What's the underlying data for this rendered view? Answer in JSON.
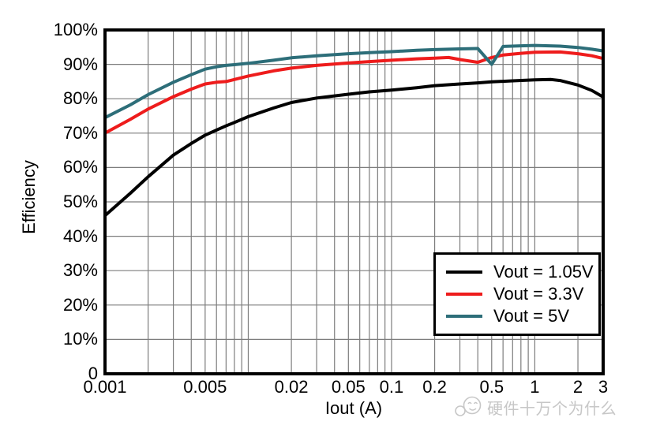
{
  "watermark": {
    "text": "硬件十万个为什么"
  },
  "chart_data": {
    "type": "line",
    "title": "",
    "xlabel": "Iout (A)",
    "ylabel": "Efficiency",
    "x_scale": "log",
    "xlim": [
      0.001,
      3
    ],
    "ylim": [
      0,
      100
    ],
    "grid": true,
    "legend_position": "lower-right",
    "x_ticks": [
      {
        "v": 0.001,
        "label": "0.001"
      },
      {
        "v": 0.005,
        "label": "0.005"
      },
      {
        "v": 0.02,
        "label": "0.02"
      },
      {
        "v": 0.05,
        "label": "0.05"
      },
      {
        "v": 0.1,
        "label": "0.1"
      },
      {
        "v": 0.2,
        "label": "0.2"
      },
      {
        "v": 0.5,
        "label": "0.5"
      },
      {
        "v": 1,
        "label": "1"
      },
      {
        "v": 2,
        "label": "2"
      },
      {
        "v": 3,
        "label": "3"
      }
    ],
    "y_ticks": [
      {
        "v": 100,
        "label": "100%"
      },
      {
        "v": 90,
        "label": "90%"
      },
      {
        "v": 80,
        "label": "80%"
      },
      {
        "v": 70,
        "label": "70%"
      },
      {
        "v": 60,
        "label": "60%"
      },
      {
        "v": 50,
        "label": "50%"
      },
      {
        "v": 40,
        "label": "40%"
      },
      {
        "v": 30,
        "label": "30%"
      },
      {
        "v": 20,
        "label": "20%"
      },
      {
        "v": 10,
        "label": "10%"
      },
      {
        "v": 0,
        "label": "0"
      }
    ],
    "x_gridlines": [
      0.002,
      0.003,
      0.004,
      0.005,
      0.006,
      0.007,
      0.008,
      0.009,
      0.01,
      0.02,
      0.03,
      0.04,
      0.05,
      0.06,
      0.07,
      0.08,
      0.09,
      0.1,
      0.2,
      0.3,
      0.4,
      0.5,
      0.6,
      0.7,
      0.8,
      0.9,
      1,
      2
    ],
    "y_gridlines": [
      10,
      20,
      30,
      40,
      50,
      60,
      70,
      80,
      90
    ],
    "series": [
      {
        "name": "Vout = 1.05V",
        "color": "#000000",
        "points": [
          [
            0.001,
            46
          ],
          [
            0.0015,
            52.5
          ],
          [
            0.002,
            57.3
          ],
          [
            0.003,
            63.6
          ],
          [
            0.004,
            67
          ],
          [
            0.005,
            69.4
          ],
          [
            0.006,
            70.9
          ],
          [
            0.007,
            72.1
          ],
          [
            0.008,
            73.1
          ],
          [
            0.01,
            74.8
          ],
          [
            0.015,
            77.3
          ],
          [
            0.02,
            78.9
          ],
          [
            0.03,
            80.2
          ],
          [
            0.05,
            81.3
          ],
          [
            0.07,
            82
          ],
          [
            0.1,
            82.5
          ],
          [
            0.15,
            83.2
          ],
          [
            0.2,
            83.8
          ],
          [
            0.3,
            84.3
          ],
          [
            0.4,
            84.6
          ],
          [
            0.5,
            84.9
          ],
          [
            0.7,
            85.2
          ],
          [
            1,
            85.5
          ],
          [
            1.3,
            85.6
          ],
          [
            1.5,
            85.3
          ],
          [
            2,
            84
          ],
          [
            2.5,
            82.4
          ],
          [
            3,
            80.5
          ]
        ]
      },
      {
        "name": "Vout = 3.3V",
        "color": "#ee1c1c",
        "points": [
          [
            0.001,
            70
          ],
          [
            0.0015,
            74
          ],
          [
            0.002,
            77
          ],
          [
            0.003,
            80.6
          ],
          [
            0.004,
            82.8
          ],
          [
            0.005,
            84.3
          ],
          [
            0.006,
            84.8
          ],
          [
            0.007,
            85
          ],
          [
            0.008,
            85.6
          ],
          [
            0.01,
            86.6
          ],
          [
            0.015,
            88.1
          ],
          [
            0.02,
            88.9
          ],
          [
            0.03,
            89.7
          ],
          [
            0.05,
            90.4
          ],
          [
            0.07,
            90.8
          ],
          [
            0.1,
            91.2
          ],
          [
            0.15,
            91.6
          ],
          [
            0.2,
            91.8
          ],
          [
            0.25,
            92
          ],
          [
            0.3,
            91.4
          ],
          [
            0.4,
            90.6
          ],
          [
            0.5,
            92
          ],
          [
            0.6,
            92.7
          ],
          [
            0.8,
            93.2
          ],
          [
            1,
            93.5
          ],
          [
            1.5,
            93.6
          ],
          [
            2,
            93.1
          ],
          [
            2.5,
            92.5
          ],
          [
            3,
            91.7
          ]
        ]
      },
      {
        "name": "Vout = 5V",
        "color": "#2d6e79",
        "points": [
          [
            0.001,
            74.5
          ],
          [
            0.0015,
            78.2
          ],
          [
            0.002,
            81.2
          ],
          [
            0.003,
            84.8
          ],
          [
            0.004,
            87
          ],
          [
            0.005,
            88.6
          ],
          [
            0.006,
            89.3
          ],
          [
            0.007,
            89.7
          ],
          [
            0.008,
            89.9
          ],
          [
            0.01,
            90.3
          ],
          [
            0.015,
            91.2
          ],
          [
            0.02,
            91.9
          ],
          [
            0.03,
            92.5
          ],
          [
            0.05,
            93.1
          ],
          [
            0.07,
            93.4
          ],
          [
            0.1,
            93.7
          ],
          [
            0.15,
            94.1
          ],
          [
            0.2,
            94.3
          ],
          [
            0.3,
            94.5
          ],
          [
            0.4,
            94.6
          ],
          [
            0.5,
            90
          ],
          [
            0.6,
            95.2
          ],
          [
            0.8,
            95.4
          ],
          [
            1,
            95.5
          ],
          [
            1.5,
            95.3
          ],
          [
            2,
            94.9
          ],
          [
            2.5,
            94.4
          ],
          [
            3,
            93.9
          ]
        ]
      }
    ]
  }
}
